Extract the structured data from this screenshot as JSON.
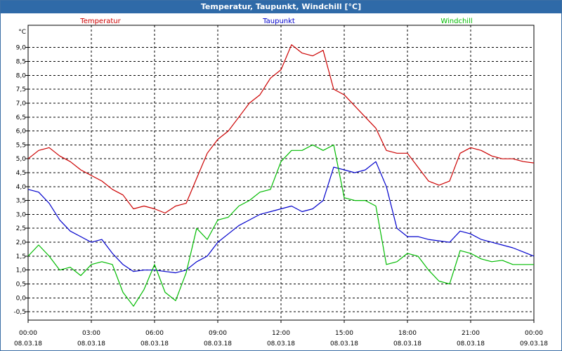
{
  "window": {
    "title": "Temperatur, Taupunkt, Windchill [°C]"
  },
  "colors": {
    "temperatur": "#cc0000",
    "taupunkt": "#0000cc",
    "windchill": "#00bb00",
    "grid": "#000000",
    "title_bg": "#2f6aa8"
  },
  "chart_data": {
    "type": "line",
    "title": "Temperatur, Taupunkt, Windchill [°C]",
    "ylabel": "°C",
    "xlim": [
      0,
      24
    ],
    "ylim": [
      -0.8,
      9.8
    ],
    "yticks": [
      "-0,5",
      "0,0",
      "0,5",
      "1,0",
      "1,5",
      "2,0",
      "2,5",
      "3,0",
      "3,5",
      "4,0",
      "4,5",
      "5,0",
      "5,5",
      "6,0",
      "6,5",
      "7,0",
      "7,5",
      "8,0",
      "8,5",
      "9,0"
    ],
    "xticks": [
      {
        "time": "00:00",
        "date": "08.03.18"
      },
      {
        "time": "03:00",
        "date": "08.03.18"
      },
      {
        "time": "06:00",
        "date": "08.03.18"
      },
      {
        "time": "09:00",
        "date": "08.03.18"
      },
      {
        "time": "12:00",
        "date": "08.03.18"
      },
      {
        "time": "15:00",
        "date": "08.03.18"
      },
      {
        "time": "18:00",
        "date": "08.03.18"
      },
      {
        "time": "21:00",
        "date": "08.03.18"
      },
      {
        "time": "00:00",
        "date": "09.03.18"
      }
    ],
    "series": [
      {
        "name": "Temperatur",
        "x": [
          0,
          0.5,
          1,
          1.5,
          2,
          2.5,
          3,
          3.5,
          4,
          4.5,
          5,
          5.5,
          6,
          6.5,
          7,
          7.5,
          8,
          8.5,
          9,
          9.5,
          10,
          10.5,
          11,
          11.5,
          12,
          12.5,
          13,
          13.5,
          14,
          14.5,
          15,
          15.5,
          16,
          16.5,
          17,
          17.5,
          18,
          18.5,
          19,
          19.5,
          20,
          20.5,
          21,
          21.5,
          22,
          22.5,
          23,
          23.5,
          24
        ],
        "values": [
          5.0,
          5.3,
          5.4,
          5.1,
          4.9,
          4.6,
          4.4,
          4.2,
          3.9,
          3.7,
          3.2,
          3.3,
          3.2,
          3.05,
          3.3,
          3.4,
          4.3,
          5.2,
          5.7,
          6.0,
          6.5,
          7.0,
          7.3,
          7.9,
          8.2,
          9.1,
          8.8,
          8.7,
          8.9,
          7.5,
          7.3,
          6.9,
          6.5,
          6.1,
          5.3,
          5.2,
          5.2,
          4.7,
          4.2,
          4.05,
          4.2,
          5.2,
          5.4,
          5.3,
          5.1,
          5.0,
          5.0,
          4.9,
          4.85
        ]
      },
      {
        "name": "Taupunkt",
        "x": [
          0,
          0.5,
          1,
          1.5,
          2,
          2.5,
          3,
          3.5,
          4,
          4.5,
          5,
          5.5,
          6,
          6.5,
          7,
          7.5,
          8,
          8.5,
          9,
          9.5,
          10,
          10.5,
          11,
          11.5,
          12,
          12.5,
          13,
          13.5,
          14,
          14.5,
          15,
          15.5,
          16,
          16.5,
          17,
          17.5,
          18,
          18.5,
          19,
          19.5,
          20,
          20.5,
          21,
          21.5,
          22,
          22.5,
          23,
          23.5,
          24
        ],
        "values": [
          3.9,
          3.8,
          3.4,
          2.8,
          2.4,
          2.2,
          2.0,
          2.1,
          1.6,
          1.2,
          0.95,
          1.0,
          1.0,
          0.95,
          0.9,
          1.0,
          1.3,
          1.5,
          2.0,
          2.3,
          2.6,
          2.8,
          3.0,
          3.1,
          3.2,
          3.3,
          3.1,
          3.2,
          3.5,
          4.7,
          4.6,
          4.5,
          4.6,
          4.9,
          4.0,
          2.5,
          2.2,
          2.2,
          2.1,
          2.05,
          2.0,
          2.4,
          2.3,
          2.1,
          2.0,
          1.9,
          1.8,
          1.65,
          1.5
        ]
      },
      {
        "name": "Windchill",
        "x": [
          0,
          0.5,
          1,
          1.5,
          2,
          2.5,
          3,
          3.5,
          4,
          4.5,
          5,
          5.5,
          6,
          6.5,
          7,
          7.5,
          8,
          8.5,
          9,
          9.5,
          10,
          10.5,
          11,
          11.5,
          12,
          12.5,
          13,
          13.5,
          14,
          14.5,
          15,
          15.5,
          16,
          16.5,
          17,
          17.5,
          18,
          18.5,
          19,
          19.5,
          20,
          20.5,
          21,
          21.5,
          22,
          22.5,
          23,
          23.5,
          24
        ],
        "values": [
          1.5,
          1.9,
          1.5,
          1.0,
          1.1,
          0.8,
          1.2,
          1.3,
          1.2,
          0.2,
          -0.3,
          0.3,
          1.2,
          0.2,
          -0.1,
          0.9,
          2.5,
          2.1,
          2.8,
          2.9,
          3.3,
          3.5,
          3.8,
          3.9,
          4.9,
          5.3,
          5.3,
          5.5,
          5.3,
          5.5,
          3.6,
          3.5,
          3.5,
          3.3,
          1.2,
          1.3,
          1.6,
          1.5,
          1.0,
          0.6,
          0.5,
          1.7,
          1.6,
          1.4,
          1.3,
          1.35,
          1.2,
          1.2,
          1.2
        ]
      }
    ]
  }
}
